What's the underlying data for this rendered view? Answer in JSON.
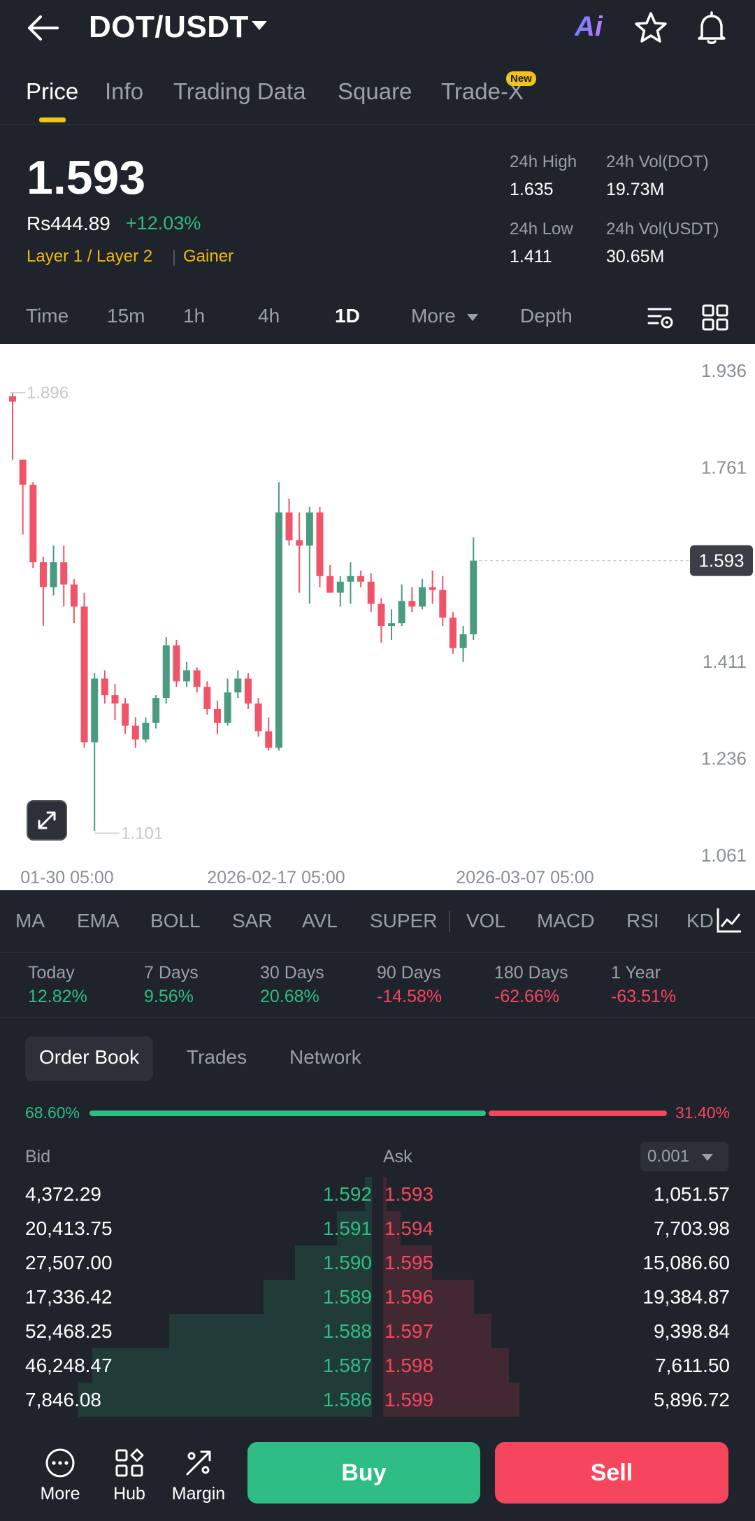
{
  "header": {
    "pair": "DOT/USDT",
    "ai_label": "Ai",
    "icons": [
      "back-arrow-icon",
      "caret-down-icon",
      "star-icon",
      "bell-icon"
    ]
  },
  "tabs": [
    {
      "label": "Price",
      "active": true
    },
    {
      "label": "Info"
    },
    {
      "label": "Trading Data"
    },
    {
      "label": "Square"
    },
    {
      "label": "Trade-X",
      "badge": "New"
    }
  ],
  "ticker": {
    "last_price": "1.593",
    "fiat_price": "Rs444.89",
    "change": "+12.03%",
    "tags": [
      "Layer 1 / Layer 2",
      "Gainer"
    ],
    "stats": [
      {
        "label": "24h High",
        "value": "1.635"
      },
      {
        "label": "24h Vol(DOT)",
        "value": "19.73M"
      },
      {
        "label": "24h Low",
        "value": "1.411"
      },
      {
        "label": "24h Vol(USDT)",
        "value": "30.65M"
      }
    ]
  },
  "timeframes": [
    {
      "label": "Time"
    },
    {
      "label": "15m"
    },
    {
      "label": "1h"
    },
    {
      "label": "4h"
    },
    {
      "label": "1D",
      "active": true
    },
    {
      "label": "More"
    },
    {
      "label": "Depth"
    }
  ],
  "chart_data": {
    "type": "candlestick",
    "y_ticks": [
      "1.936",
      "1.761",
      "1.593",
      "1.411",
      "1.236",
      "1.061"
    ],
    "ylim": [
      1.061,
      1.936
    ],
    "x_ticks": [
      "01-30 05:00",
      "2026-02-17 05:00",
      "2026-03-07 05:00"
    ],
    "high_marker": "1.896",
    "low_marker": "1.101",
    "last_price_label": "1.593",
    "candles": [
      [
        1.89,
        1.88,
        1.895,
        1.775
      ],
      [
        1.775,
        1.73,
        1.775,
        1.64
      ],
      [
        1.73,
        1.59,
        1.735,
        1.58
      ],
      [
        1.59,
        1.545,
        1.6,
        1.475
      ],
      [
        1.545,
        1.59,
        1.62,
        1.53
      ],
      [
        1.59,
        1.55,
        1.62,
        1.51
      ],
      [
        1.55,
        1.51,
        1.56,
        1.48
      ],
      [
        1.51,
        1.265,
        1.535,
        1.255
      ],
      [
        1.265,
        1.38,
        1.39,
        1.105
      ],
      [
        1.38,
        1.35,
        1.395,
        1.335
      ],
      [
        1.35,
        1.335,
        1.37,
        1.305
      ],
      [
        1.335,
        1.295,
        1.345,
        1.28
      ],
      [
        1.295,
        1.27,
        1.31,
        1.255
      ],
      [
        1.27,
        1.3,
        1.31,
        1.265
      ],
      [
        1.3,
        1.345,
        1.35,
        1.29
      ],
      [
        1.345,
        1.44,
        1.455,
        1.335
      ],
      [
        1.44,
        1.375,
        1.45,
        1.365
      ],
      [
        1.375,
        1.395,
        1.41,
        1.365
      ],
      [
        1.395,
        1.365,
        1.4,
        1.355
      ],
      [
        1.365,
        1.325,
        1.375,
        1.315
      ],
      [
        1.325,
        1.3,
        1.34,
        1.28
      ],
      [
        1.3,
        1.355,
        1.38,
        1.295
      ],
      [
        1.355,
        1.38,
        1.395,
        1.345
      ],
      [
        1.38,
        1.335,
        1.39,
        1.325
      ],
      [
        1.335,
        1.285,
        1.345,
        1.275
      ],
      [
        1.285,
        1.255,
        1.31,
        1.25
      ],
      [
        1.255,
        1.68,
        1.735,
        1.25
      ],
      [
        1.68,
        1.63,
        1.705,
        1.62
      ],
      [
        1.63,
        1.62,
        1.68,
        1.535
      ],
      [
        1.62,
        1.68,
        1.69,
        1.515
      ],
      [
        1.68,
        1.565,
        1.69,
        1.545
      ],
      [
        1.565,
        1.535,
        1.585,
        1.535
      ],
      [
        1.535,
        1.555,
        1.565,
        1.51
      ],
      [
        1.555,
        1.565,
        1.59,
        1.515
      ],
      [
        1.565,
        1.555,
        1.575,
        1.545
      ],
      [
        1.555,
        1.515,
        1.57,
        1.5
      ],
      [
        1.515,
        1.475,
        1.525,
        1.445
      ],
      [
        1.475,
        1.48,
        1.505,
        1.45
      ],
      [
        1.48,
        1.52,
        1.55,
        1.475
      ],
      [
        1.52,
        1.51,
        1.545,
        1.5
      ],
      [
        1.51,
        1.545,
        1.56,
        1.505
      ],
      [
        1.545,
        1.54,
        1.575,
        1.515
      ],
      [
        1.54,
        1.49,
        1.565,
        1.475
      ],
      [
        1.49,
        1.435,
        1.5,
        1.425
      ],
      [
        1.435,
        1.46,
        1.475,
        1.41
      ],
      [
        1.46,
        1.593,
        1.635,
        1.45
      ]
    ],
    "colors": {
      "up": "#4a9b81",
      "down": "#f05468",
      "axis_text": "#8a8f98"
    }
  },
  "indicators": [
    "MA",
    "EMA",
    "BOLL",
    "SAR",
    "AVL",
    "SUPER",
    "VOL",
    "MACD",
    "RSI",
    "KD"
  ],
  "performance": [
    {
      "label": "Today",
      "value": "12.82%",
      "dir": "up"
    },
    {
      "label": "7 Days",
      "value": "9.56%",
      "dir": "up"
    },
    {
      "label": "30 Days",
      "value": "20.68%",
      "dir": "up"
    },
    {
      "label": "90 Days",
      "value": "-14.58%",
      "dir": "down"
    },
    {
      "label": "180 Days",
      "value": "-62.66%",
      "dir": "down"
    },
    {
      "label": "1 Year",
      "value": "-63.51%",
      "dir": "down"
    }
  ],
  "orderbook_tabs": [
    {
      "label": "Order Book",
      "active": true
    },
    {
      "label": "Trades"
    },
    {
      "label": "Network"
    }
  ],
  "ratio": {
    "bid": "68.60%",
    "ask": "31.40%",
    "bid_fraction": 0.686
  },
  "orderbook": {
    "bid_header": "Bid",
    "ask_header": "Ask",
    "precision": "0.001",
    "rows": [
      {
        "bid_qty": "4,372.29",
        "bid_px": "1.592",
        "ask_px": "1.593",
        "ask_qty": "1,051.57",
        "bid_depth": 0.02,
        "ask_depth": 0.01
      },
      {
        "bid_qty": "20,413.75",
        "bid_px": "1.591",
        "ask_px": "1.594",
        "ask_qty": "7,703.98",
        "bid_depth": 0.1,
        "ask_depth": 0.05
      },
      {
        "bid_qty": "27,507.00",
        "bid_px": "1.590",
        "ask_px": "1.595",
        "ask_qty": "15,086.60",
        "bid_depth": 0.22,
        "ask_depth": 0.14
      },
      {
        "bid_qty": "17,336.42",
        "bid_px": "1.589",
        "ask_px": "1.596",
        "ask_qty": "19,384.87",
        "bid_depth": 0.31,
        "ask_depth": 0.26
      },
      {
        "bid_qty": "52,468.25",
        "bid_px": "1.588",
        "ask_px": "1.597",
        "ask_qty": "9,398.84",
        "bid_depth": 0.58,
        "ask_depth": 0.31
      },
      {
        "bid_qty": "46,248.47",
        "bid_px": "1.587",
        "ask_px": "1.598",
        "ask_qty": "7,611.50",
        "bid_depth": 0.8,
        "ask_depth": 0.36
      },
      {
        "bid_qty": "7,846.08",
        "bid_px": "1.586",
        "ask_px": "1.599",
        "ask_qty": "5,896.72",
        "bid_depth": 0.84,
        "ask_depth": 0.39
      }
    ]
  },
  "bottom_nav": {
    "more": "More",
    "hub": "Hub",
    "margin": "Margin",
    "buy": "Buy",
    "sell": "Sell"
  }
}
